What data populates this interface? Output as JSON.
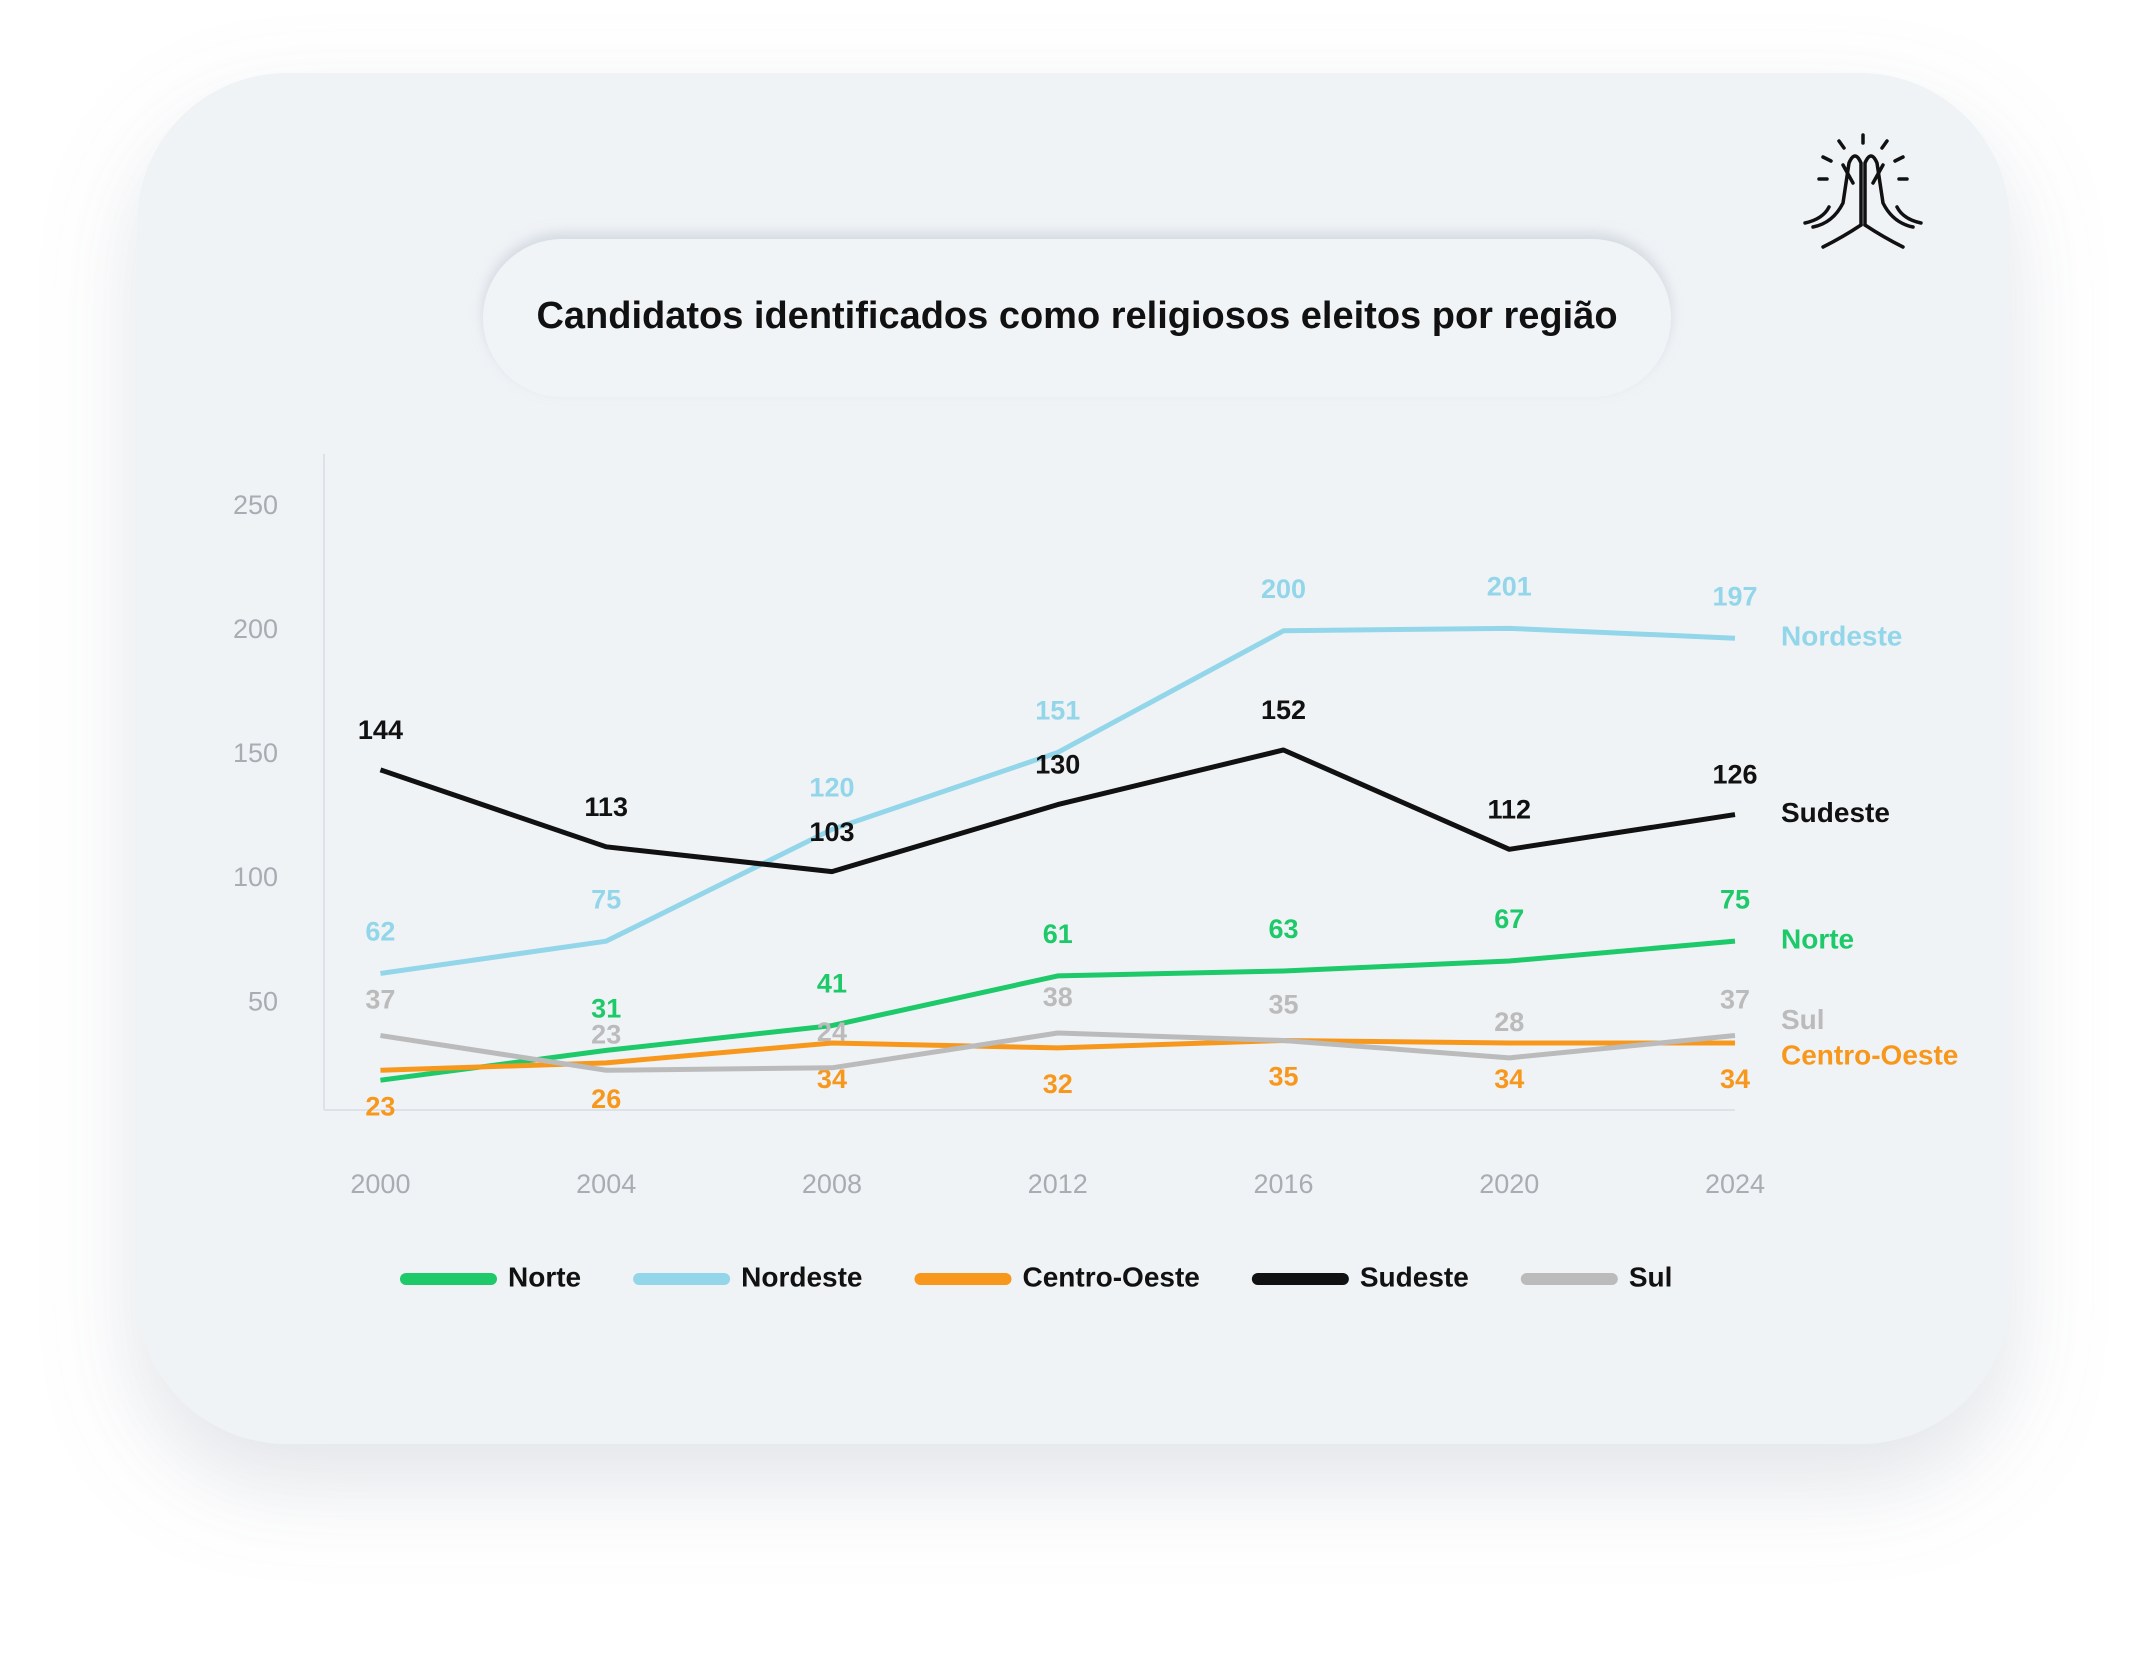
{
  "chart_data": {
    "type": "line",
    "title": "Candidatos identificados como religiosos eleitos por região",
    "x": [
      2000,
      2004,
      2008,
      2012,
      2016,
      2020,
      2024
    ],
    "xlim": [
      1999,
      2024
    ],
    "xticks": [
      2000,
      2004,
      2008,
      2012,
      2016,
      2020,
      2024
    ],
    "ylim": [
      7,
      270
    ],
    "yticks": [
      50,
      100,
      150,
      200,
      250
    ],
    "grid": false,
    "legend": "bottom",
    "series": [
      {
        "name": "Norte",
        "color": "#1ec96a",
        "values": [
          19,
          31,
          41,
          61,
          63,
          67,
          75
        ],
        "value_labels": [
          null,
          "31",
          "41",
          "61",
          "63",
          "67",
          "75"
        ]
      },
      {
        "name": "Nordeste",
        "color": "#93d6ea",
        "values": [
          62,
          75,
          120,
          151,
          200,
          201,
          197
        ]
      },
      {
        "name": "Centro-Oeste",
        "color": "#f7981d",
        "values": [
          23,
          26,
          34,
          32,
          35,
          34,
          34
        ]
      },
      {
        "name": "Sudeste",
        "color": "#111111",
        "values": [
          144,
          113,
          103,
          130,
          152,
          112,
          126
        ]
      },
      {
        "name": "Sul",
        "color": "#bbbbbb",
        "values": [
          37,
          23,
          24,
          38,
          35,
          28,
          37
        ]
      }
    ]
  }
}
